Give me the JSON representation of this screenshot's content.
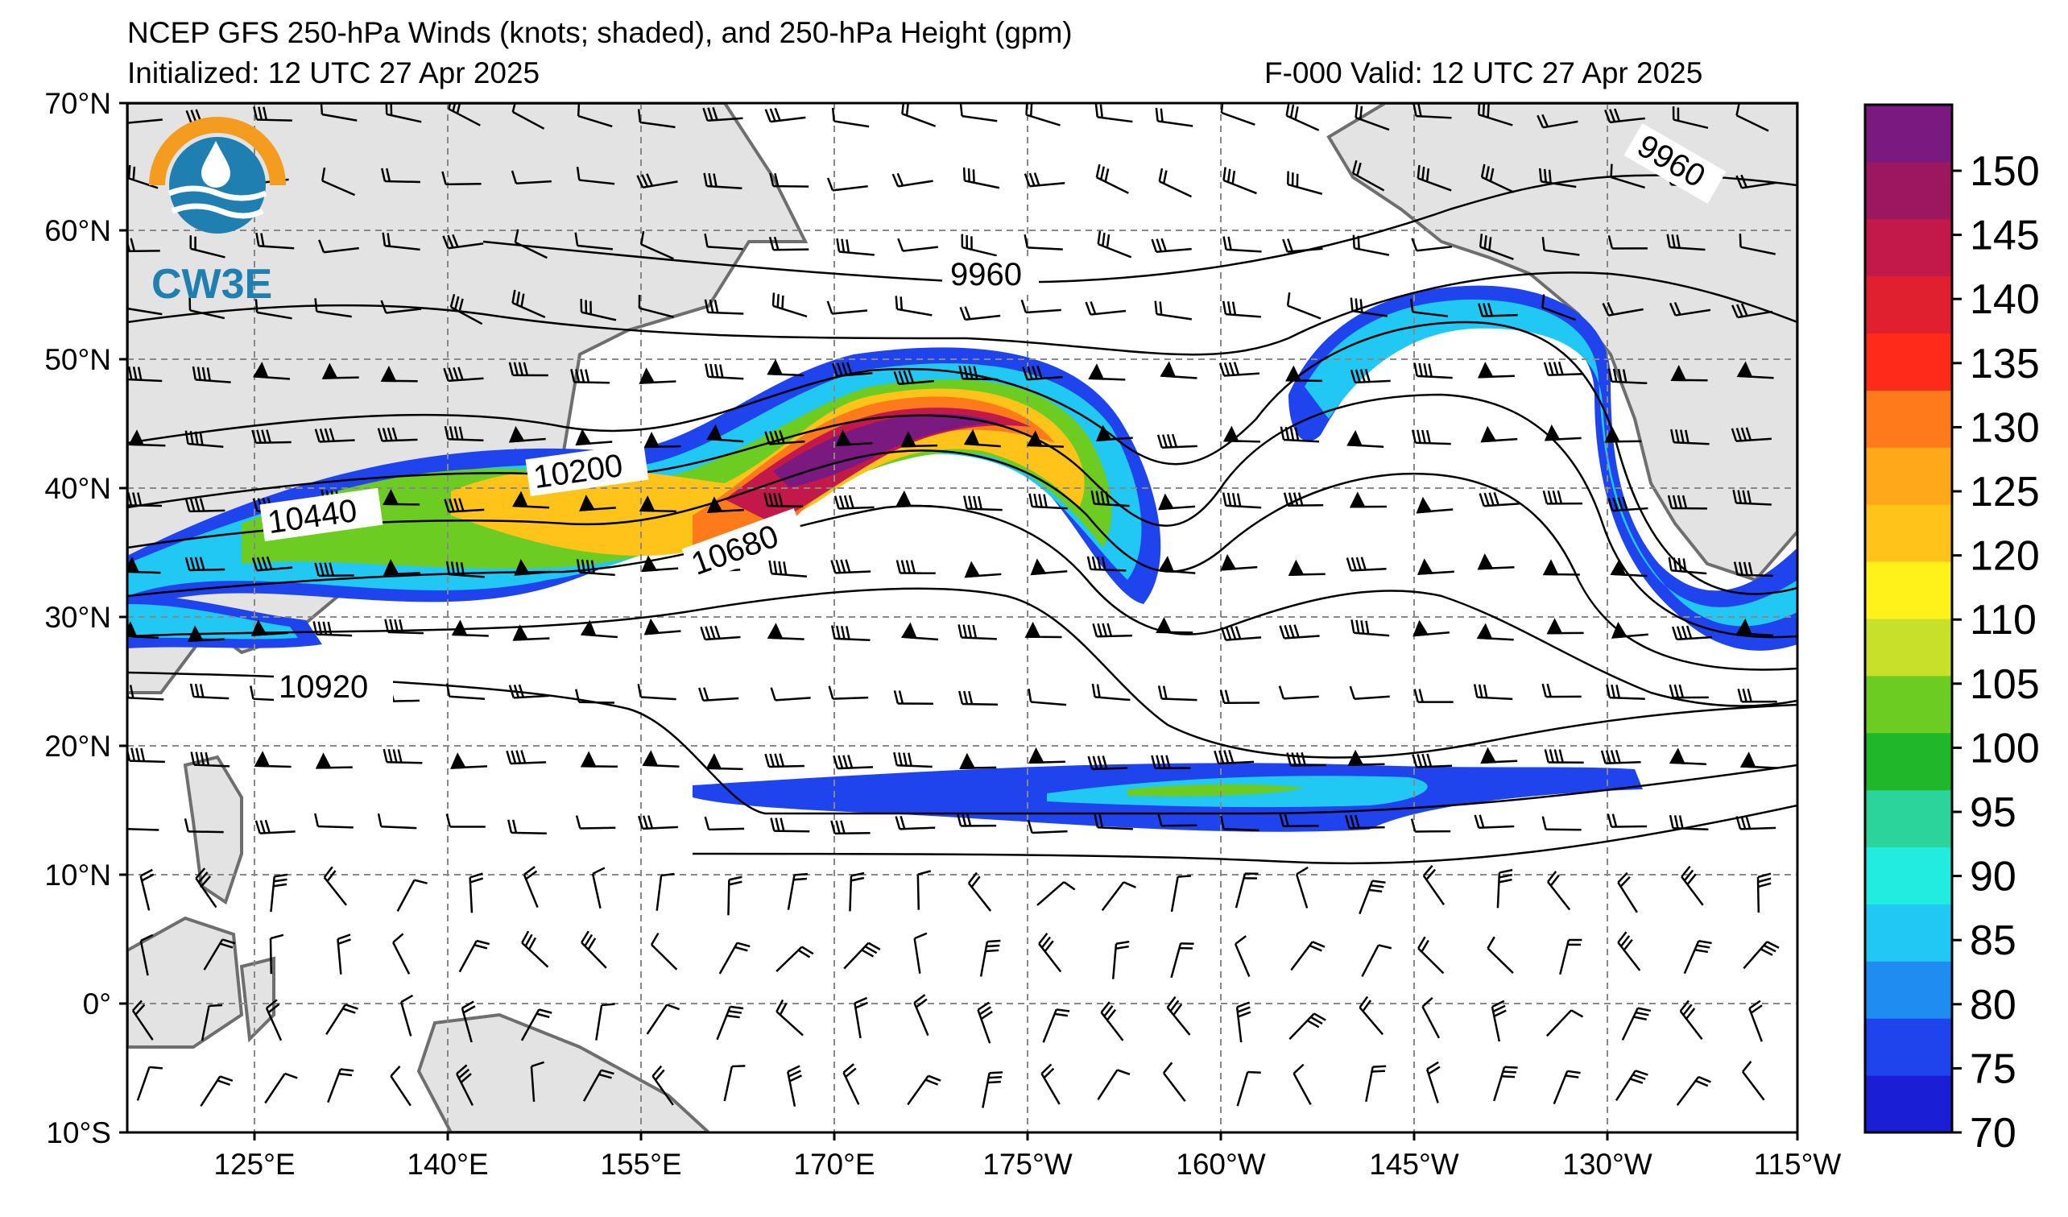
{
  "header": {
    "title": "NCEP GFS 250-hPa Winds (knots; shaded), and 250-hPa Height (gpm)",
    "initialized": "Initialized: 12 UTC 27 Apr 2025",
    "valid": "F-000  Valid: 12 UTC 27 Apr 2025"
  },
  "logo": {
    "text": "CW3E",
    "accent": "#f39c1f",
    "primary": "#1e7fb0"
  },
  "map": {
    "lat_labels": [
      "70°N",
      "60°N",
      "50°N",
      "40°N",
      "30°N",
      "20°N",
      "10°N",
      "0°",
      "10°S"
    ],
    "lon_labels": [
      "125°E",
      "140°E",
      "155°E",
      "170°E",
      "175°W",
      "160°W",
      "145°W",
      "130°W",
      "115°W"
    ],
    "land_color": "#e3e3e3",
    "coast_color": "#6e6e6e",
    "grid": true
  },
  "contour_labels": [
    "9960",
    "9960",
    "10200",
    "10440",
    "10680",
    "10920"
  ],
  "colorbar": {
    "ticks": [
      "150",
      "145",
      "140",
      "135",
      "130",
      "125",
      "120",
      "110",
      "105",
      "100",
      "95",
      "90",
      "85",
      "80",
      "75",
      "70"
    ],
    "colors": [
      "#1a1fd6",
      "#1f44ee",
      "#1f8cf2",
      "#22c8f4",
      "#22ecdf",
      "#2bd49a",
      "#20b82a",
      "#6ccc22",
      "#c9e02a",
      "#fff21a",
      "#ffc31a",
      "#ffa81a",
      "#ff7a1a",
      "#ff2a1a",
      "#e0202e",
      "#c2184a",
      "#9c1660",
      "#7a1a80"
    ]
  }
}
